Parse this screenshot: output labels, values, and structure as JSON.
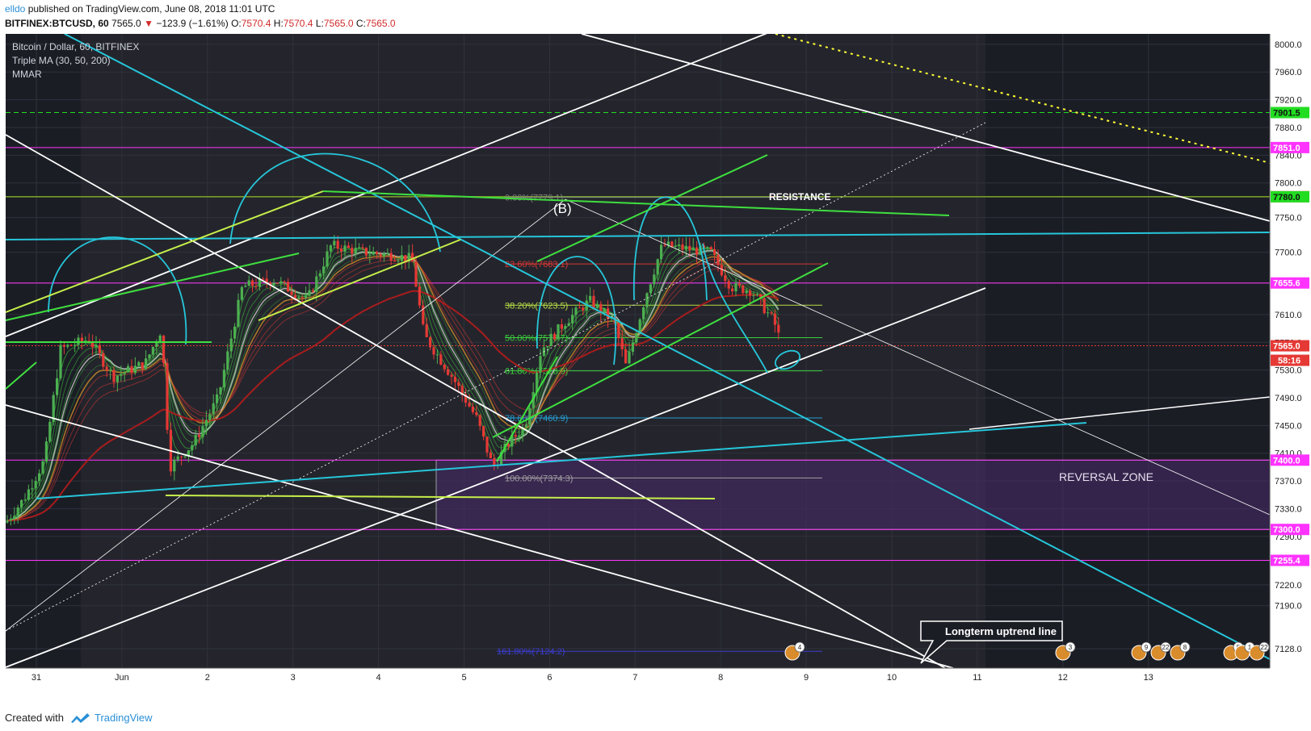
{
  "header": {
    "author": "elldo",
    "published": "published on TradingView.com, June 08, 2018 11:01 UTC",
    "symbol": "BITFINEX:BTCUSD, 60",
    "last": "7565.0",
    "change": "−123.9 (−1.61%)",
    "o_label": "O:",
    "o_value": "7570.4",
    "h_label": "H:",
    "h_value": "7570.4",
    "l_label": "L:",
    "l_value": "7565.0",
    "c_label": "C:",
    "c_value": "7565.0"
  },
  "legend": {
    "title": "Bitcoin / Dollar, 60, BITFINEX",
    "indicator1": "Triple MA (30, 50, 200)",
    "indicator2": "MMAR"
  },
  "footer": {
    "created": "Created with",
    "brand": "TradingView"
  },
  "colors": {
    "background": "#1b1d25",
    "candle_up": "#4caf50",
    "candle_down": "#e53935",
    "trend_white": "#ffffff",
    "trend_cyan": "#26c6da",
    "trend_green": "#3fe03f",
    "level_magenta": "#ff33ff",
    "resistance_red": "#ff3333",
    "reversal_zone": "#4a2a6a"
  },
  "chart_data": {
    "type": "candlestick",
    "symbol": "BTCUSD",
    "interval": "60",
    "ylim": [
      7100,
      8015
    ],
    "y_ticks": [
      "8000.0",
      "7960.0",
      "7920.0",
      "7880.0",
      "7840.0",
      "7800.0",
      "7750.0",
      "7700.0",
      "7655.0",
      "7610.0",
      "7570.0",
      "7530.0",
      "7490.0",
      "7450.0",
      "7410.0",
      "7370.0",
      "7330.0",
      "7290.0",
      "7255.0",
      "7220.0",
      "7190.0",
      "7128.0"
    ],
    "x_ticks": [
      "31",
      "Jun",
      "2",
      "3",
      "4",
      "5",
      "6",
      "7",
      "8",
      "9",
      "10",
      "11",
      "12",
      "13"
    ],
    "price_labels": [
      {
        "value": 7901.5,
        "color": "#22dd22"
      },
      {
        "value": 7851.0,
        "color": "#ff33ff"
      },
      {
        "value": 7780.1,
        "color": "#ff3333"
      },
      {
        "value": 7780.0,
        "color": "#22dd22"
      },
      {
        "value": 7655.6,
        "color": "#ff33ff"
      },
      {
        "value": 7565.0,
        "color": "#e53935"
      },
      {
        "value": 7400.0,
        "color": "#ff33ff"
      },
      {
        "value": 7300.0,
        "color": "#ff33ff"
      },
      {
        "value": 7255.4,
        "color": "#ff33ff"
      }
    ],
    "countdown": "58:16",
    "fib_levels": [
      {
        "label": "0.00%(7779.1)",
        "value": 7779.1
      },
      {
        "label": "23.60%(7683.1)",
        "value": 7683.1
      },
      {
        "label": "38.20%(7623.5)",
        "value": 7623.5
      },
      {
        "label": "50.00%(7576.7)",
        "value": 7576.7
      },
      {
        "label": "61.80%(7528.9)",
        "value": 7528.9
      },
      {
        "label": "78.60%(7460.9)",
        "value": 7460.9
      },
      {
        "label": "100.00%(7374.3)",
        "value": 7374.3
      },
      {
        "label": "161.80%(7124.2)",
        "value": 7124.2
      }
    ],
    "annotations": {
      "resistance": "RESISTANCE",
      "reversal_zone": "REVERSAL ZONE",
      "wave_b": "(B)",
      "callout": "Longterm uptrend line"
    },
    "event_badges": [
      "4",
      "3",
      "9",
      "22",
      "8",
      "5",
      "1",
      "22"
    ],
    "reversal_zone_range": [
      7300,
      7400
    ],
    "grid": true
  }
}
